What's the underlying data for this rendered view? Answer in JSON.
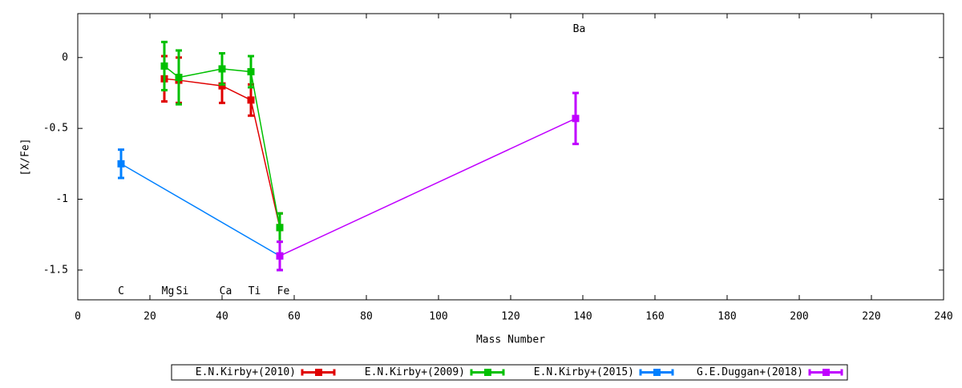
{
  "chart_data": {
    "type": "errorline",
    "x_label": "Mass Number",
    "y_label": "[X/Fe]",
    "xlim": [
      0,
      240
    ],
    "xticks": [
      0,
      20,
      40,
      60,
      80,
      100,
      120,
      140,
      160,
      180,
      200,
      220,
      240
    ],
    "ylim": [
      -1.71,
      0.31
    ],
    "yticks": [
      0,
      -0.5,
      -1,
      -1.5
    ],
    "series": [
      {
        "name": "E.N.Kirby+(2010)",
        "color": "#e00000",
        "x": [
          24,
          28,
          40,
          48,
          56
        ],
        "values": [
          -0.15,
          -0.16,
          -0.2,
          -0.3,
          -1.2
        ],
        "errors": [
          0.16,
          0.16,
          0.12,
          0.11,
          0.1
        ]
      },
      {
        "name": "E.N.Kirby+(2009)",
        "color": "#00c000",
        "x": [
          24,
          28,
          40,
          48,
          56
        ],
        "values": [
          -0.06,
          -0.14,
          -0.08,
          -0.1,
          -1.2
        ],
        "errors": [
          0.17,
          0.19,
          0.11,
          0.11,
          0.1
        ]
      },
      {
        "name": "E.N.Kirby+(2015)",
        "color": "#0080ff",
        "x": [
          12,
          56
        ],
        "values": [
          -0.75,
          -1.4
        ],
        "errors": [
          0.1,
          0.1
        ]
      },
      {
        "name": "G.E.Duggan+(2018)",
        "color": "#c000ff",
        "x": [
          56,
          138
        ],
        "values": [
          -1.4,
          -0.43
        ],
        "errors": [
          0.1,
          0.18
        ]
      }
    ],
    "annotations": [
      {
        "text": "C",
        "x": 12,
        "y": -1.65
      },
      {
        "text": "Mg",
        "x": 25,
        "y": -1.65
      },
      {
        "text": "Si",
        "x": 29,
        "y": -1.65
      },
      {
        "text": "Ca",
        "x": 41,
        "y": -1.65
      },
      {
        "text": "Ti",
        "x": 49,
        "y": -1.65
      },
      {
        "text": "Fe",
        "x": 57,
        "y": -1.65
      },
      {
        "text": "Ba",
        "x": 139,
        "y": 0.2
      }
    ]
  }
}
